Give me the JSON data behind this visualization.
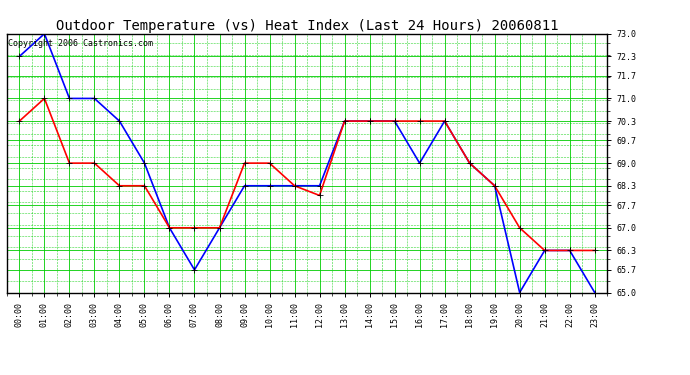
{
  "title": "Outdoor Temperature (vs) Heat Index (Last 24 Hours) 20060811",
  "copyright_text": "Copyright 2006 Castronics.com",
  "hours": [
    "00:00",
    "01:00",
    "02:00",
    "03:00",
    "04:00",
    "05:00",
    "06:00",
    "07:00",
    "08:00",
    "09:00",
    "10:00",
    "11:00",
    "12:00",
    "13:00",
    "14:00",
    "15:00",
    "16:00",
    "17:00",
    "18:00",
    "19:00",
    "20:00",
    "21:00",
    "22:00",
    "23:00"
  ],
  "blue_temp": [
    72.3,
    73.0,
    71.0,
    71.0,
    70.3,
    69.0,
    67.0,
    65.7,
    67.0,
    68.3,
    68.3,
    68.3,
    68.3,
    70.3,
    70.3,
    70.3,
    69.0,
    70.3,
    69.0,
    68.3,
    65.0,
    66.3,
    66.3,
    65.0
  ],
  "red_heat": [
    70.3,
    71.0,
    69.0,
    69.0,
    68.3,
    68.3,
    67.0,
    67.0,
    67.0,
    69.0,
    69.0,
    68.3,
    68.0,
    70.3,
    70.3,
    70.3,
    70.3,
    70.3,
    69.0,
    68.3,
    67.0,
    66.3,
    66.3,
    66.3
  ],
  "blue_color": "#0000FF",
  "red_color": "#FF0000",
  "bg_color": "#FFFFFF",
  "plot_bg_color": "#FFFFFF",
  "grid_color": "#00CC00",
  "minor_grid_color": "#00CC00",
  "ymin": 65.0,
  "ymax": 73.0,
  "yticks": [
    65.0,
    65.7,
    66.3,
    67.0,
    67.7,
    68.3,
    69.0,
    69.7,
    70.3,
    71.0,
    71.7,
    72.3,
    73.0
  ],
  "title_fontsize": 10,
  "copyright_fontsize": 6,
  "tick_fontsize": 6,
  "marker": "+",
  "marker_size": 4,
  "linewidth": 1.2
}
